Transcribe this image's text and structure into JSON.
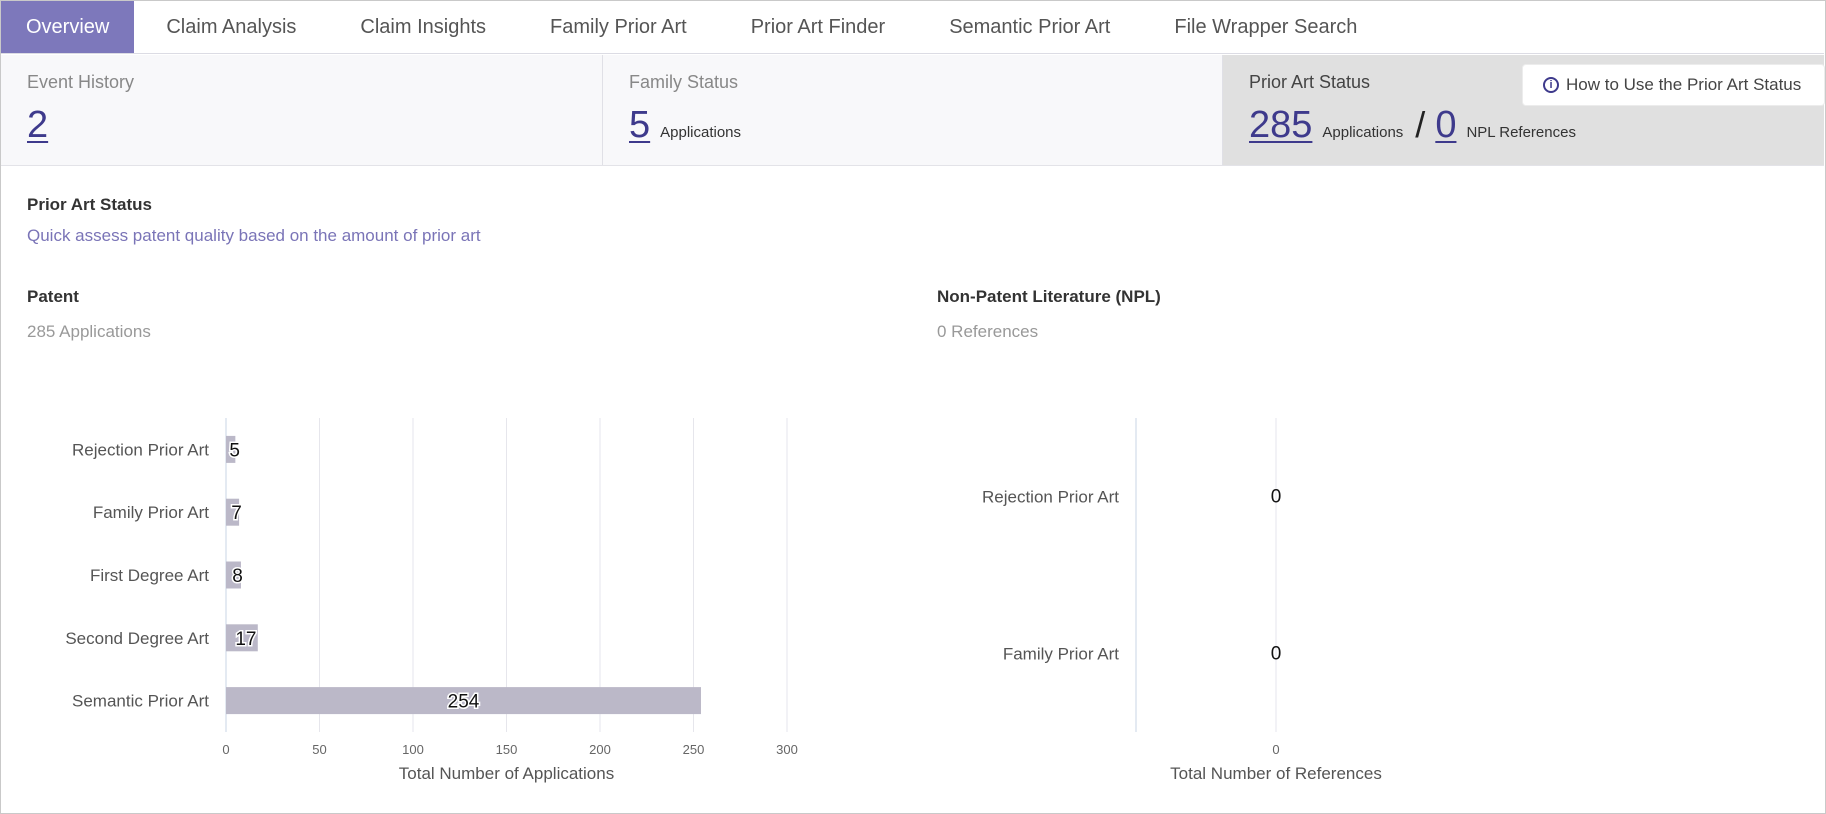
{
  "tabs": [
    {
      "label": "Overview",
      "active": true
    },
    {
      "label": "Claim Analysis",
      "active": false
    },
    {
      "label": "Claim Insights",
      "active": false
    },
    {
      "label": "Family Prior Art",
      "active": false
    },
    {
      "label": "Prior Art Finder",
      "active": false
    },
    {
      "label": "Semantic Prior Art",
      "active": false
    },
    {
      "label": "File Wrapper Search",
      "active": false
    }
  ],
  "cards": {
    "event_history": {
      "title": "Event History",
      "value": "2"
    },
    "family_status": {
      "title": "Family Status",
      "value": "5",
      "unit": "Applications"
    },
    "prior_art_status": {
      "title": "Prior Art Status",
      "value": "285",
      "unit": "Applications",
      "separator": "/",
      "npl_value": "0",
      "npl_unit": "NPL References"
    },
    "howto_label": "How to Use the Prior Art Status",
    "howto_icon": "info-icon"
  },
  "section": {
    "title": "Prior Art Status",
    "subtitle": "Quick assess patent quality based on the amount of prior art"
  },
  "patent": {
    "title": "Patent",
    "subtitle": "285 Applications"
  },
  "npl": {
    "title": "Non-Patent Literature (NPL)",
    "subtitle": "0 References"
  },
  "colors": {
    "accent": "#7d78bb",
    "link": "#3e3a8c",
    "bar": "#bbb8c8"
  },
  "chart_data": [
    {
      "type": "bar",
      "orientation": "horizontal",
      "categories": [
        "Rejection Prior Art",
        "Family Prior Art",
        "First Degree Art",
        "Second Degree Art",
        "Semantic Prior Art"
      ],
      "values": [
        5,
        7,
        8,
        17,
        254
      ],
      "xlabel": "Total Number of Applications",
      "xlim": [
        0,
        300
      ],
      "xticks": [
        0,
        50,
        100,
        150,
        200,
        250,
        300
      ],
      "grid": true
    },
    {
      "type": "bar",
      "orientation": "horizontal",
      "categories": [
        "Rejection Prior Art",
        "Family Prior Art"
      ],
      "values": [
        0,
        0
      ],
      "xlabel": "Total Number of References",
      "xticks": [
        0
      ],
      "grid": true
    }
  ]
}
